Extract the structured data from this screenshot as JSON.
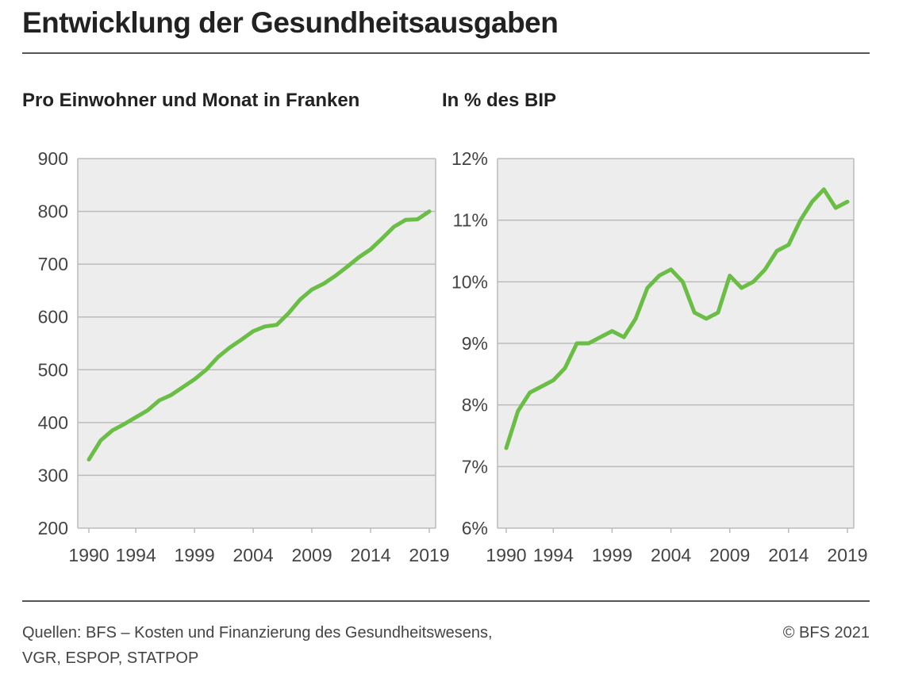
{
  "title": "Entwicklung der Gesundheitsausgaben",
  "footer": {
    "source_line1": "Quellen: BFS – Kosten und Finanzierung des Gesundheitswesens,",
    "source_line2": "VGR, ESPOP, STATPOP",
    "copyright": "© BFS 2021"
  },
  "colors": {
    "line": "#6abd45",
    "grid": "#bbbbbb",
    "plot_bg": "#ededed"
  },
  "chart_data": [
    {
      "type": "line",
      "title": "Pro Einwohner und Monat in Franken",
      "xlabel": "",
      "ylabel": "",
      "grid": true,
      "xlim": [
        1990,
        2019
      ],
      "ylim": [
        200,
        900
      ],
      "xticks": [
        "1990",
        "1994",
        "1999",
        "2004",
        "2009",
        "2014",
        "2019"
      ],
      "yticks": [
        "900",
        "800",
        "700",
        "600",
        "500",
        "400",
        "300",
        "200"
      ],
      "x": [
        1990,
        1991,
        1992,
        1993,
        1994,
        1995,
        1996,
        1997,
        1998,
        1999,
        2000,
        2001,
        2002,
        2003,
        2004,
        2005,
        2006,
        2007,
        2008,
        2009,
        2010,
        2011,
        2012,
        2013,
        2014,
        2015,
        2016,
        2017,
        2018,
        2019
      ],
      "values": [
        330,
        366,
        385,
        397,
        410,
        423,
        442,
        452,
        467,
        482,
        500,
        524,
        542,
        557,
        573,
        582,
        585,
        607,
        633,
        652,
        663,
        678,
        695,
        713,
        728,
        749,
        771,
        784,
        785,
        800
      ]
    },
    {
      "type": "line",
      "title": "In % des BIP",
      "xlabel": "",
      "ylabel": "",
      "grid": true,
      "xlim": [
        1990,
        2019
      ],
      "ylim": [
        6,
        12
      ],
      "xticks": [
        "1990",
        "1994",
        "1999",
        "2004",
        "2009",
        "2014",
        "2019"
      ],
      "yticks": [
        "12%",
        "11%",
        "10%",
        "9%",
        "8%",
        "7%",
        "6%"
      ],
      "x": [
        1990,
        1991,
        1992,
        1993,
        1994,
        1995,
        1996,
        1997,
        1998,
        1999,
        2000,
        2001,
        2002,
        2003,
        2004,
        2005,
        2006,
        2007,
        2008,
        2009,
        2010,
        2011,
        2012,
        2013,
        2014,
        2015,
        2016,
        2017,
        2018,
        2019
      ],
      "values": [
        7.3,
        7.9,
        8.2,
        8.3,
        8.4,
        8.6,
        9.0,
        9.0,
        9.1,
        9.2,
        9.1,
        9.4,
        9.9,
        10.1,
        10.2,
        10.0,
        9.5,
        9.4,
        9.5,
        10.1,
        9.9,
        10.0,
        10.2,
        10.5,
        10.6,
        11.0,
        11.3,
        11.5,
        11.2,
        11.3
      ]
    }
  ]
}
